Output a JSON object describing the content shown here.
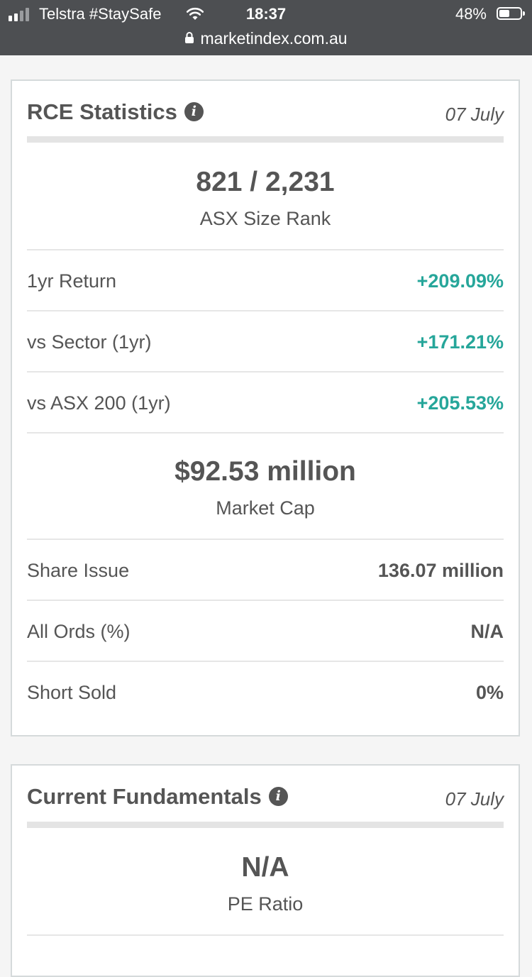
{
  "status_bar": {
    "carrier": "Telstra #StaySafe",
    "time": "18:37",
    "battery": "48%",
    "battery_level": 0.48,
    "url": "marketindex.com.au"
  },
  "rce_statistics": {
    "title": "RCE Statistics",
    "date": "07 July",
    "size_rank": {
      "value": "821 / 2,231",
      "label": "ASX Size Rank"
    },
    "returns": [
      {
        "label": "1yr Return",
        "value": "+209.09%"
      },
      {
        "label": "vs Sector (1yr)",
        "value": "+171.21%"
      },
      {
        "label": "vs ASX 200 (1yr)",
        "value": "+205.53%"
      }
    ],
    "market_cap": {
      "value": "$92.53 million",
      "label": "Market Cap"
    },
    "details": [
      {
        "label": "Share Issue",
        "value": "136.07 million"
      },
      {
        "label": "All Ords (%)",
        "value": "N/A"
      },
      {
        "label": "Short Sold",
        "value": "0%"
      }
    ],
    "colors": {
      "positive": "#26a69a",
      "text": "#555555"
    }
  },
  "current_fundamentals": {
    "title": "Current Fundamentals",
    "date": "07 July",
    "pe_ratio": {
      "value": "N/A",
      "label": "PE Ratio"
    }
  }
}
